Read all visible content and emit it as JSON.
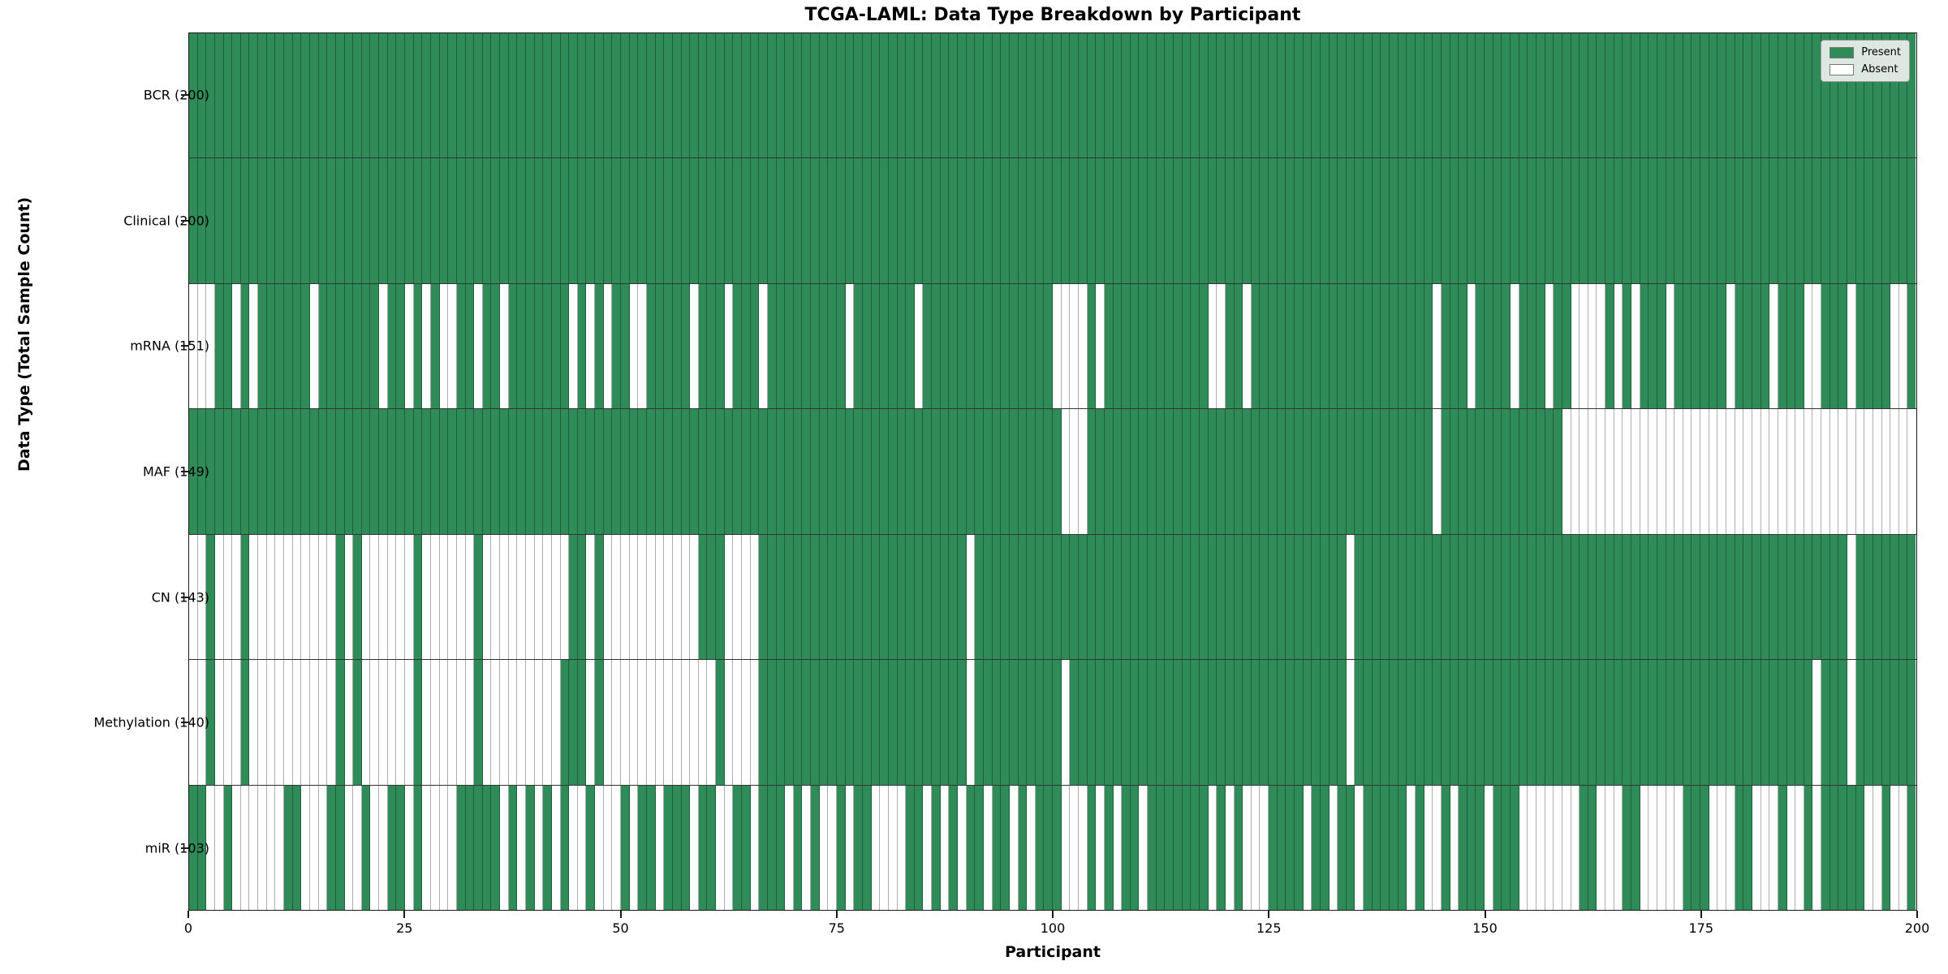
{
  "chart_data": {
    "type": "heatmap",
    "title": "TCGA-LAML: Data Type Breakdown by Participant",
    "xlabel": "Participant",
    "ylabel": "Data Type (Total Sample Count)",
    "n_participants": 200,
    "x_ticks": [
      0,
      25,
      50,
      75,
      100,
      125,
      150,
      175,
      200
    ],
    "xlim": [
      0,
      200
    ],
    "grid": false,
    "legend_position": "upper-right",
    "colors": {
      "present": "#2f8b57",
      "absent": "#ffffff"
    },
    "legend": {
      "present_label": "Present",
      "absent_label": "Absent"
    },
    "rows": [
      {
        "name": "BCR",
        "count": 200,
        "label": "BCR (200)",
        "pattern": "11111111111111111111111111111111111111111111111111111111111111111111111111111111111111111111111111111111111111111111111111111111111111111111111111111111111111111111111111111111111111111111111111111111"
      },
      {
        "name": "Clinical",
        "count": 200,
        "label": "Clinical (200)",
        "pattern": "11111111111111111111111111111111111111111111111111111111111111111111111111111111111111111111111111111111111111111111111111111111111111111111111111111111111111111111111111111111111111111111111111111111"
      },
      {
        "name": "mRNA",
        "count": 151,
        "label": "mRNA (151)",
        "pattern": "0001101011111101111111011010100110110111111101010110011111011101110111111111011111110111111111111111000010111111111111001101111111111111111111110111011110111011000010101110111111011110111001110111100111"
      },
      {
        "name": "MAF",
        "count": 149,
        "label": "MAF (149)",
        "pattern": "11111111111111111111111111111111111111111111111111111111111111111111111111111111111111111111111111111000111111111111111111111111111111111111111101111111111111100000000000000000000000000000000000000000"
      },
      {
        "name": "CN",
        "count": 143,
        "label": "CN (143)",
        "pattern": "00100010000000000101000000100000010000000000110100000000000111000011111111111111111111111101111111111111111111111111111111111111111111011111111111111111111111111111111111111111111111111111111101111111"
      },
      {
        "name": "Methylation",
        "count": 140,
        "label": "Methylation (140)",
        "pattern": "00100010000000000101000000100000010000000001110100000000000001000011111111111111111111111101111111111011111111111111111111111111111111011111111111111111111111111111111111111111111111111111011101111111"
      },
      {
        "name": "miR",
        "count": 103,
        "label": "miR (103)",
        "pattern": "11001000000110001100100110100001111101010101001000101101110110011011101010010110000110101011011010111000101011011111110101000111101101101111101001011101110000000110001100000111000110001001011111001001"
      }
    ]
  }
}
